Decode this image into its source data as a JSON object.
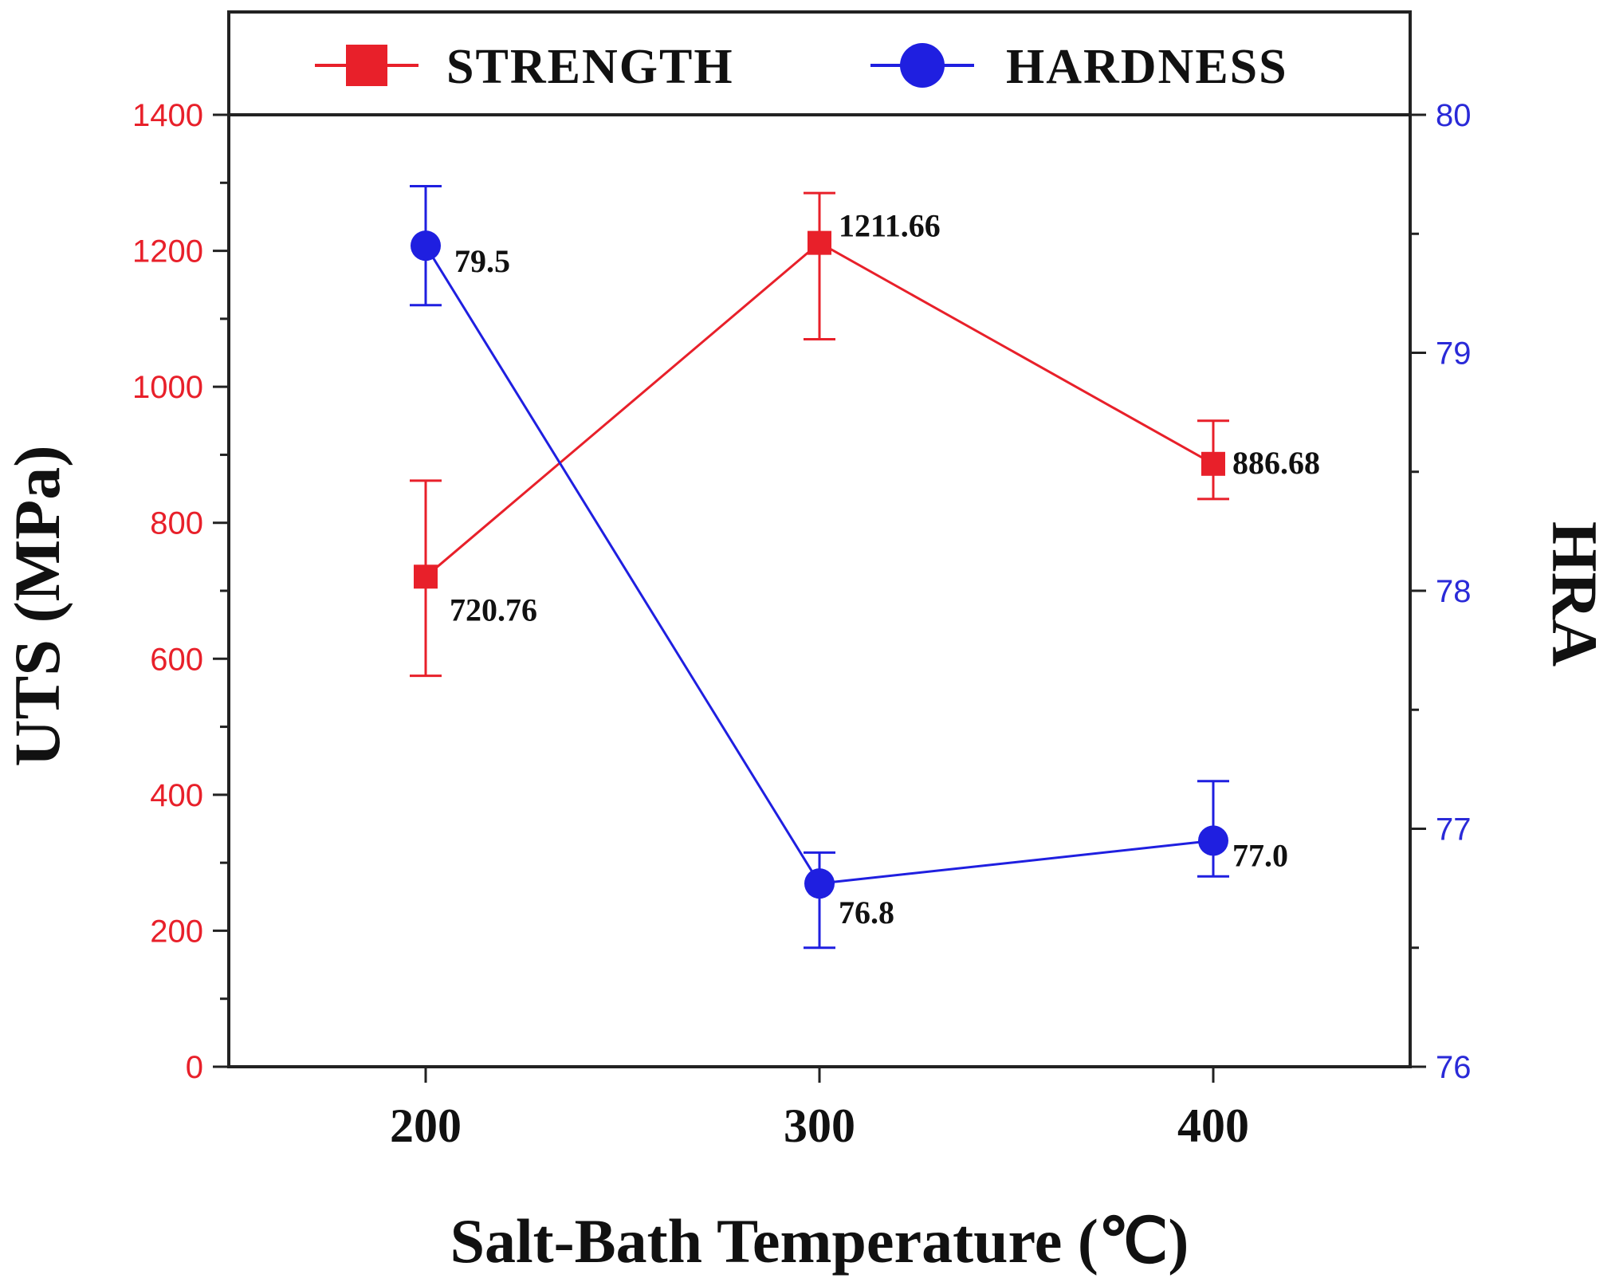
{
  "chart_data": {
    "type": "line",
    "xlabel": "Salt-Bath Temperature (℃)",
    "ylabel_left": "UTS (MPa)",
    "ylabel_right": "HRA",
    "x": [
      200,
      300,
      400
    ],
    "x_ticks": [
      "200",
      "300",
      "400"
    ],
    "xlim": [
      150,
      450
    ],
    "ylim_left": [
      0,
      1400
    ],
    "ylim_right": [
      76,
      80
    ],
    "y_ticks_left": [
      "0",
      "200",
      "400",
      "600",
      "800",
      "1000",
      "1200",
      "1400"
    ],
    "y_ticks_right": [
      "76",
      "77",
      "78",
      "79",
      "80"
    ],
    "legend_position": "top",
    "grid": false,
    "series": [
      {
        "name": "STRENGTH",
        "axis": "left",
        "color": "#e8202a",
        "marker": "square",
        "values": [
          720.76,
          1211.66,
          886.68
        ],
        "err_low": [
          575,
          1070,
          835
        ],
        "err_high": [
          862,
          1285,
          950
        ],
        "labels": [
          "720.76",
          "1211.66",
          "886.68"
        ]
      },
      {
        "name": "HARDNESS",
        "axis": "right",
        "color": "#1f1fe0",
        "marker": "circle",
        "values": [
          79.45,
          76.77,
          76.95
        ],
        "err_low": [
          79.2,
          76.5,
          76.8
        ],
        "err_high": [
          79.7,
          76.9,
          77.2
        ],
        "labels": [
          "79.5",
          "76.8",
          "77.0"
        ]
      }
    ]
  }
}
